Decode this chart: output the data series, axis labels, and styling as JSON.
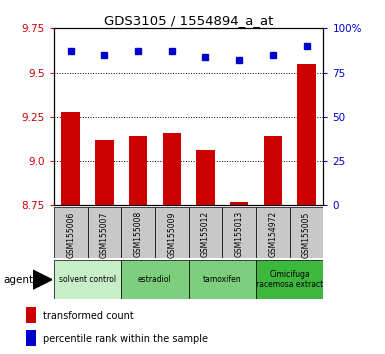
{
  "title": "GDS3105 / 1554894_a_at",
  "samples": [
    "GSM155006",
    "GSM155007",
    "GSM155008",
    "GSM155009",
    "GSM155012",
    "GSM155013",
    "GSM154972",
    "GSM155005"
  ],
  "bar_values": [
    9.28,
    9.12,
    9.14,
    9.16,
    9.06,
    8.77,
    9.14,
    9.55
  ],
  "dot_values": [
    87,
    85,
    87,
    87,
    84,
    82,
    85,
    90
  ],
  "ylim_left": [
    8.75,
    9.75
  ],
  "ylim_right": [
    0,
    100
  ],
  "yticks_left": [
    8.75,
    9.0,
    9.25,
    9.5,
    9.75
  ],
  "yticks_right": [
    0,
    25,
    50,
    75,
    100
  ],
  "bar_color": "#cc0000",
  "dot_color": "#0000cc",
  "grid_color": "#000000",
  "agent_groups": [
    {
      "label": "solvent control",
      "start": 0,
      "end": 2,
      "color": "#c8eec8"
    },
    {
      "label": "estradiol",
      "start": 2,
      "end": 4,
      "color": "#7dce7d"
    },
    {
      "label": "tamoxifen",
      "start": 4,
      "end": 6,
      "color": "#7dce7d"
    },
    {
      "label": "Cimicifuga\nracemosa extract",
      "start": 6,
      "end": 8,
      "color": "#3db83d"
    }
  ],
  "agent_label": "agent",
  "legend_bar_label": "transformed count",
  "legend_dot_label": "percentile rank within the sample",
  "plot_bg_color": "#ffffff",
  "sample_bg_color": "#c8c8c8",
  "tick_label_color_left": "#cc0000",
  "tick_label_color_right": "#0000cc",
  "fig_width": 3.85,
  "fig_height": 3.54,
  "dpi": 100
}
